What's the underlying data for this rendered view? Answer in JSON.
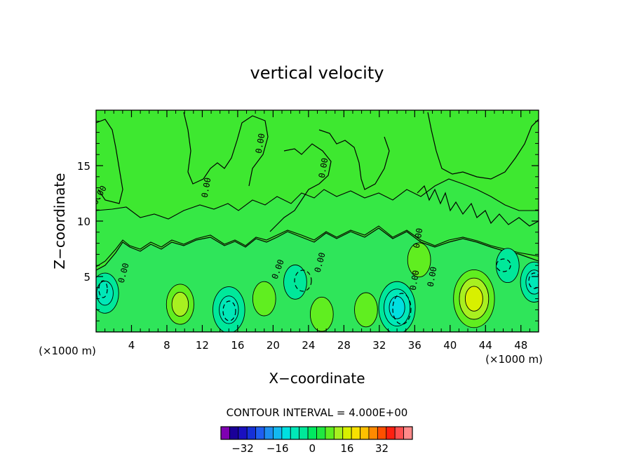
{
  "chart_data": {
    "type": "heatmap",
    "title": "vertical velocity",
    "xlabel": "X−coordinate",
    "ylabel": "Z−coordinate",
    "x_unit": "(×1000 m)",
    "y_unit": "(×1000 m)",
    "xlim": [
      0,
      50
    ],
    "ylim": [
      0,
      20
    ],
    "x_ticks": [
      4,
      8,
      12,
      16,
      20,
      24,
      28,
      32,
      36,
      40,
      44,
      48
    ],
    "y_ticks": [
      5,
      10,
      15
    ],
    "contour_interval_text": "CONTOUR INTERVAL = 4.000E+00",
    "contour_label": "0.00",
    "colorbar": {
      "colors": [
        "#7f00b2",
        "#1a0099",
        "#1a10c0",
        "#1530d8",
        "#1f5ef0",
        "#1e8ff0",
        "#13b8f0",
        "#00e0e0",
        "#00e8b8",
        "#00e89a",
        "#00e860",
        "#20e840",
        "#60ee20",
        "#a8f020",
        "#d8f000",
        "#f8e000",
        "#ffc000",
        "#ff8a00",
        "#ff5000",
        "#ff2010",
        "#ff5050",
        "#ff8a8a"
      ],
      "tick_labels": [
        "−32",
        "−16",
        "0",
        "16",
        "32"
      ],
      "tick_positions": [
        2.5,
        6.5,
        10.5,
        14.5,
        18.5
      ]
    },
    "field_features": [
      {
        "x": 42.7,
        "z": 3.0,
        "w": 6,
        "kind": "updraft"
      },
      {
        "x": 9.5,
        "z": 2.5,
        "w": 3,
        "kind": "updraft"
      },
      {
        "x": 19.0,
        "z": 3.0,
        "w": 2,
        "kind": "updraft"
      },
      {
        "x": 30.5,
        "z": 2.0,
        "w": 2,
        "kind": "updraft"
      },
      {
        "x": 25.5,
        "z": 1.6,
        "w": 2,
        "kind": "updraft"
      },
      {
        "x": 36.5,
        "z": 6.5,
        "w": 2,
        "kind": "updraft"
      },
      {
        "x": 34.0,
        "z": 2.2,
        "w": -5,
        "kind": "downdraft"
      },
      {
        "x": 15.0,
        "z": 2.0,
        "w": -4,
        "kind": "downdraft"
      },
      {
        "x": 1.0,
        "z": 3.5,
        "w": -3,
        "kind": "downdraft"
      },
      {
        "x": 49.5,
        "z": 4.5,
        "w": -3,
        "kind": "downdraft"
      },
      {
        "x": 22.5,
        "z": 4.5,
        "w": -2,
        "kind": "downdraft"
      },
      {
        "x": 46.5,
        "z": 6.0,
        "w": -2,
        "kind": "downdraft"
      }
    ]
  }
}
